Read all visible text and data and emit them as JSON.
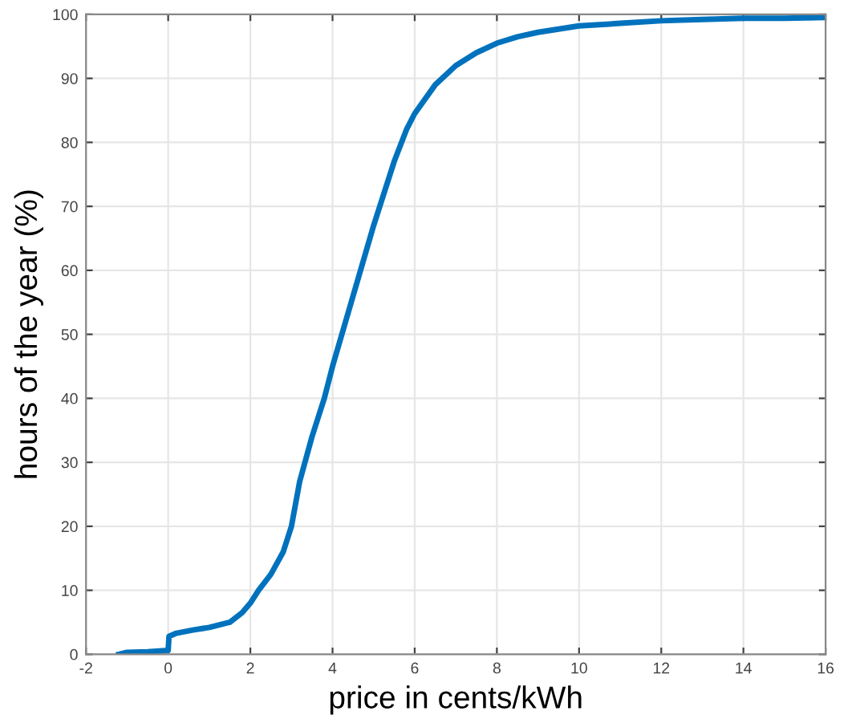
{
  "chart_data": {
    "type": "line",
    "xlabel": "price in cents/kWh",
    "ylabel": "hours of the year (%)",
    "xlim": [
      -2,
      16
    ],
    "ylim": [
      0,
      100
    ],
    "xticks": [
      -2,
      0,
      2,
      4,
      6,
      8,
      10,
      12,
      14,
      16
    ],
    "yticks": [
      0,
      10,
      20,
      30,
      40,
      50,
      60,
      70,
      80,
      90,
      100
    ],
    "grid": true,
    "marker": "none",
    "line_style": "solid",
    "series": [
      {
        "color": "#0072bd",
        "x": [
          -1.2,
          -1,
          -0.5,
          0,
          0.02,
          0.2,
          0.6,
          1,
          1.5,
          1.8,
          2,
          2.2,
          2.5,
          2.8,
          3,
          3.2,
          3.5,
          3.8,
          4,
          4.5,
          5,
          5.5,
          5.8,
          6,
          6.5,
          7,
          7.5,
          8,
          8.5,
          9,
          10,
          11,
          12,
          13,
          14,
          15,
          16
        ],
        "values": [
          0,
          0.3,
          0.4,
          0.6,
          2.8,
          3.3,
          3.8,
          4.2,
          5,
          6.5,
          8,
          10,
          12.5,
          16,
          20,
          27,
          34,
          40,
          45,
          56,
          67,
          77,
          82,
          84.5,
          89,
          92,
          94,
          95.5,
          96.5,
          97.2,
          98.2,
          98.6,
          99,
          99.2,
          99.4,
          99.4,
          99.5
        ]
      }
    ]
  }
}
